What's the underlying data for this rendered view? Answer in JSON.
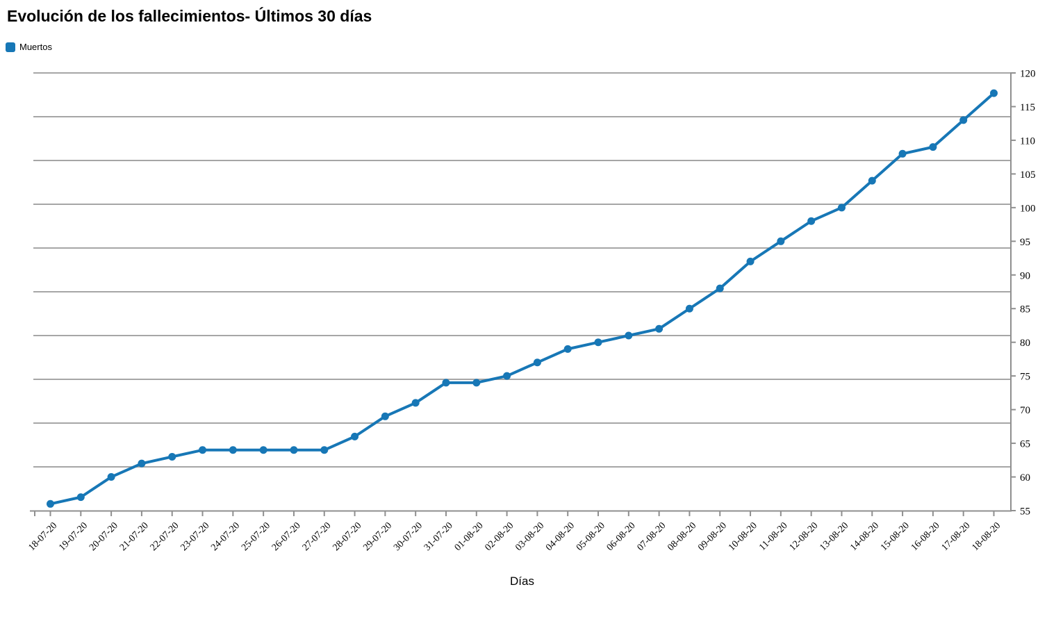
{
  "header": {
    "title": "Evolución de los fallecimientos- Últimos 30 días"
  },
  "legend": {
    "position": "top-left",
    "items": [
      {
        "label": "Muertos",
        "color": "#1777b6"
      }
    ]
  },
  "chart_data": {
    "type": "line",
    "title": "Evolución de los fallecimientos- Últimos 30 días",
    "xlabel": "Días",
    "ylabel": "",
    "categories": [
      "18-07-20",
      "19-07-20",
      "20-07-20",
      "21-07-20",
      "22-07-20",
      "23-07-20",
      "24-07-20",
      "25-07-20",
      "26-07-20",
      "27-07-20",
      "28-07-20",
      "29-07-20",
      "30-07-20",
      "31-07-20",
      "01-08-20",
      "02-08-20",
      "03-08-20",
      "04-08-20",
      "05-08-20",
      "06-08-20",
      "07-08-20",
      "08-08-20",
      "09-08-20",
      "10-08-20",
      "11-08-20",
      "12-08-20",
      "13-08-20",
      "14-08-20",
      "15-08-20",
      "16-08-20",
      "17-08-20",
      "18-08-20"
    ],
    "series": [
      {
        "name": "Muertos",
        "color": "#1777b6",
        "values": [
          56,
          57,
          60,
          62,
          63,
          64,
          64,
          64,
          64,
          64,
          66,
          69,
          71,
          74,
          74,
          75,
          77,
          79,
          80,
          81,
          82,
          85,
          88,
          92,
          95,
          98,
          100,
          104,
          108,
          109,
          113,
          117
        ]
      }
    ],
    "y_axis": {
      "position": "right",
      "min": 55,
      "max": 120,
      "tick_step": 5
    },
    "x_axis": {
      "tick_label_rotation": -45
    },
    "grid": {
      "horizontal": true,
      "divisions": 10,
      "vertical": false
    },
    "legend_position": "top-left",
    "grid_color": "#a6a6a6",
    "axis_color": "#8f8f8f",
    "tick_label_color": "#000000"
  }
}
